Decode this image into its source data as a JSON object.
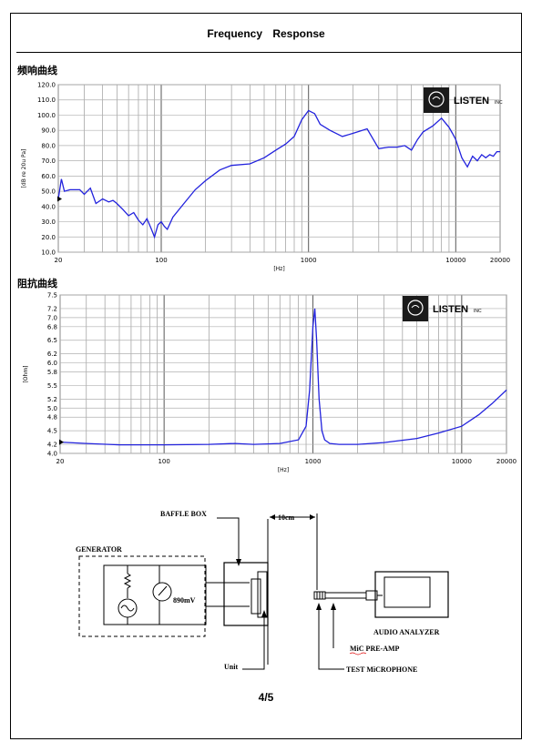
{
  "header": {
    "title": "Frequency    Response"
  },
  "page": {
    "number": "4/5"
  },
  "brand": {
    "name": "LISTEN",
    "suffix": "INC"
  },
  "chart_data": [
    {
      "type": "line",
      "title": "频响曲线",
      "xlabel": "[Hz]",
      "ylabel": "[dB re 20u Pa]",
      "xscale": "log",
      "xlim": [
        20,
        20000
      ],
      "ylim": [
        10,
        120
      ],
      "yticks": [
        "10.0",
        "20.0",
        "30.0",
        "40.0",
        "50.0",
        "60.0",
        "70.0",
        "80.0",
        "90.0",
        "100.0",
        "110.0",
        "120.0"
      ],
      "xticks": [
        "20",
        "100",
        "1000",
        "10000",
        "20000"
      ],
      "color": "#2222dd",
      "grid": true,
      "x": [
        20,
        21,
        22,
        24,
        26,
        28,
        30,
        33,
        36,
        40,
        44,
        47,
        50,
        55,
        60,
        65,
        70,
        75,
        80,
        85,
        90,
        95,
        100,
        105,
        110,
        120,
        140,
        170,
        200,
        250,
        300,
        400,
        500,
        600,
        700,
        800,
        900,
        1000,
        1100,
        1200,
        1400,
        1700,
        2000,
        2500,
        3000,
        3500,
        4000,
        4500,
        5000,
        5500,
        6000,
        7000,
        8000,
        9000,
        9500,
        10000,
        11000,
        12000,
        13000,
        14000,
        15000,
        16000,
        17000,
        18000,
        19000,
        20000
      ],
      "y": [
        45,
        58,
        50,
        51,
        51,
        51,
        48,
        52,
        42,
        45,
        43,
        44,
        42,
        38,
        34,
        36,
        31,
        28,
        32,
        26,
        20,
        28,
        30,
        27,
        25,
        33,
        41,
        51,
        57,
        64,
        67,
        68,
        72,
        77,
        81,
        86,
        97,
        103,
        101,
        94,
        90,
        86,
        88,
        91,
        78,
        79,
        79,
        80,
        77,
        84,
        89,
        93,
        98,
        92,
        88,
        84,
        72,
        66,
        73,
        70,
        74,
        72,
        74,
        73,
        76,
        76
      ]
    },
    {
      "type": "line",
      "title": "阻抗曲线",
      "xlabel": "[Hz]",
      "ylabel": "[Ohm]",
      "xscale": "log",
      "xlim": [
        20,
        20000
      ],
      "ylim": [
        4.0,
        7.5
      ],
      "yticks": [
        "4.0",
        "4.2",
        "4.5",
        "4.8",
        "5.0",
        "5.2",
        "5.5",
        "5.8",
        "6.0",
        "6.2",
        "6.5",
        "6.8",
        "7.0",
        "7.2",
        "7.5"
      ],
      "xticks": [
        "20",
        "100",
        "1000",
        "10000",
        "20000"
      ],
      "color": "#2222dd",
      "grid": true,
      "x": [
        20,
        30,
        50,
        100,
        200,
        300,
        400,
        600,
        800,
        900,
        950,
        1000,
        1030,
        1060,
        1100,
        1150,
        1200,
        1300,
        1500,
        2000,
        3000,
        5000,
        7000,
        10000,
        13000,
        16000,
        20000
      ],
      "y": [
        4.25,
        4.22,
        4.19,
        4.19,
        4.2,
        4.22,
        4.2,
        4.22,
        4.3,
        4.6,
        5.4,
        6.8,
        7.2,
        6.5,
        5.2,
        4.5,
        4.3,
        4.22,
        4.2,
        4.2,
        4.24,
        4.33,
        4.45,
        4.6,
        4.85,
        5.1,
        5.4
      ]
    }
  ],
  "diagram": {
    "generator_label": "GENERATOR",
    "voltage_label": "890mV",
    "baffle_label": "BAFFLE BOX",
    "distance_label": "10cm",
    "unit_label": "Unit",
    "analyzer_label": "AUDIO ANALYZER",
    "preamp_label": "MiC PRE-AMP",
    "mic_label": "TEST MiCROPHONE"
  }
}
